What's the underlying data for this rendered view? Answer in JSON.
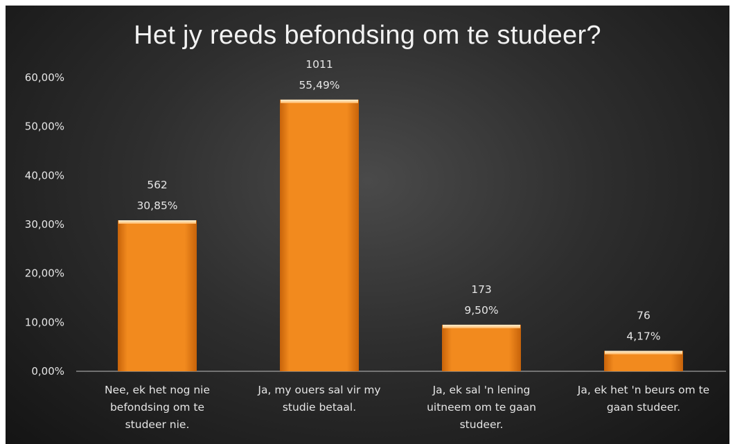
{
  "chart_data": {
    "type": "bar",
    "title": "Het jy reeds befondsing om te studeer?",
    "categories": [
      [
        "Nee, ek het nog nie",
        "befondsing om te",
        "studeer nie."
      ],
      [
        "Ja, my ouers sal vir my",
        "studie betaal."
      ],
      [
        "Ja, ek sal 'n lening",
        "uitneem om te gaan",
        "studeer."
      ],
      [
        "Ja, ek het 'n beurs om te",
        "gaan studeer."
      ]
    ],
    "values": [
      30.85,
      55.49,
      9.5,
      4.17
    ],
    "counts": [
      "562",
      "1011",
      "173",
      "76"
    ],
    "percent_labels": [
      "30,85%",
      "55,49%",
      "9,50%",
      "4,17%"
    ],
    "y_ticks": [
      "0,00%",
      "10,00%",
      "20,00%",
      "30,00%",
      "40,00%",
      "50,00%",
      "60,00%"
    ],
    "ylim": [
      0,
      60
    ],
    "xlabel": "",
    "ylabel": "",
    "grid": false,
    "legend": "none",
    "colors": {
      "bar_light": "#ffb866",
      "bar_mid": "#f28a1e",
      "bar_dark": "#c7630a",
      "text": "#e6e6e6",
      "background_center": "#4a4a4a",
      "background_edge": "#141414"
    }
  }
}
